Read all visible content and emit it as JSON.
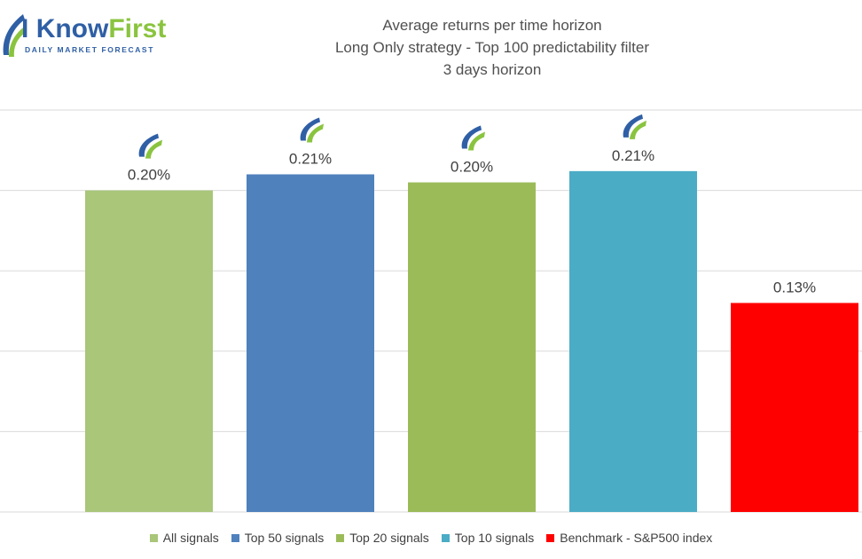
{
  "logo": {
    "brand_i": "I",
    "brand_know": "Know",
    "brand_first": "First",
    "tagline": "DAILY MARKET FORECAST"
  },
  "chart_data": {
    "type": "bar",
    "title": "Average returns per time horizon",
    "subtitle_1": "Long Only strategy - Top 100 predictability filter",
    "subtitle_2": "3 days horizon",
    "categories": [
      "All signals",
      "Top 50 signals",
      "Top 20 signals",
      "Top 10 signals",
      "Benchmark - S&P500 index"
    ],
    "values": [
      0.2,
      0.21,
      0.205,
      0.212,
      0.13
    ],
    "data_labels": [
      "0.20%",
      "0.21%",
      "0.20%",
      "0.21%",
      "0.13%"
    ],
    "colors": [
      "#a9c679",
      "#4f81bd",
      "#9bbb59",
      "#4bacc6",
      "#ff0000"
    ],
    "show_logo_icon": [
      true,
      true,
      true,
      true,
      false
    ],
    "ylim": [
      0,
      0.25
    ],
    "y_gridline_step": 0.05,
    "grid": true,
    "legend_position": "bottom",
    "xlabel": "",
    "ylabel": ""
  }
}
